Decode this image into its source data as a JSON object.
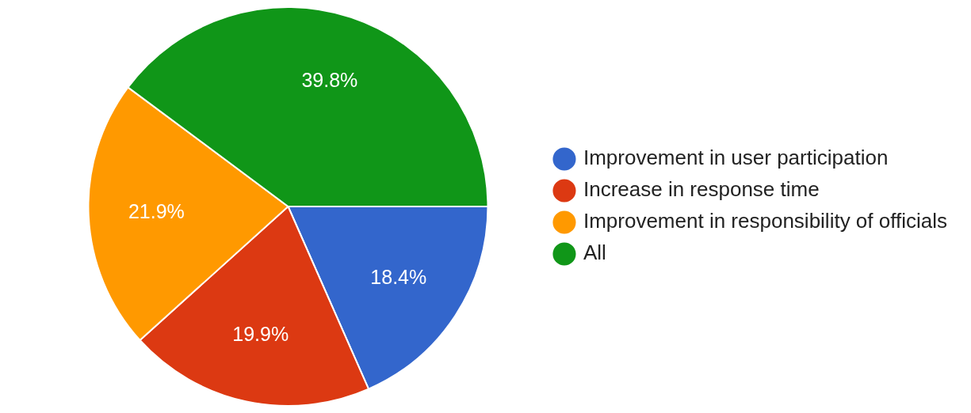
{
  "chart_data": {
    "type": "pie",
    "categories": [
      "Improvement in user participation",
      "Increase in response time",
      "Improvement in responsibility of officials",
      "All"
    ],
    "values": [
      18.4,
      19.9,
      21.9,
      39.8
    ],
    "colors": [
      "#3366cc",
      "#dc3912",
      "#ff9900",
      "#109618"
    ],
    "value_labels": [
      "18.4%",
      "19.9%",
      "21.9%",
      "39.8%"
    ],
    "legend": "right"
  }
}
